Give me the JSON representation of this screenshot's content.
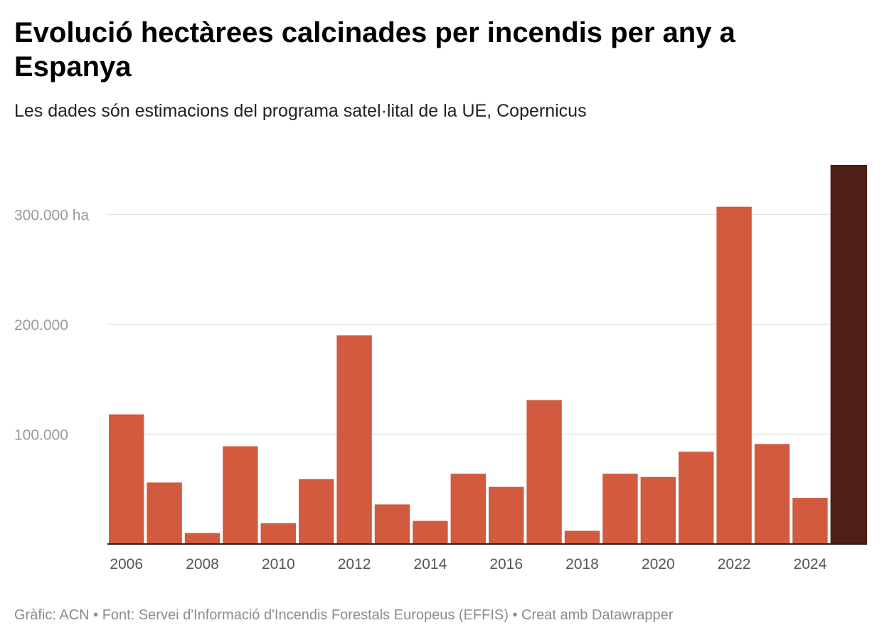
{
  "title": "Evolució hectàrees calcinades per incendis per any a Espanya",
  "subtitle": "Les dades són estimacions del programa satel·lital de la UE, Copernicus",
  "footer": {
    "credit": "Gràfic: ACN",
    "separator": " • ",
    "source": "Font: Servei d'Informació d'Incendis Forestals Europeus (EFFIS)",
    "tool": "Creat amb Datawrapper"
  },
  "chart_data": {
    "type": "bar",
    "title": "Evolució hectàrees calcinades per incendis per any a Espanya",
    "subtitle": "Les dades són estimacions del programa satel·lital de la UE, Copernicus",
    "xlabel": "",
    "ylabel": "",
    "categories": [
      "2006",
      "2007",
      "2008",
      "2009",
      "2010",
      "2011",
      "2012",
      "2013",
      "2014",
      "2015",
      "2016",
      "2017",
      "2018",
      "2019",
      "2020",
      "2021",
      "2022",
      "2023",
      "2024",
      "2025"
    ],
    "values": [
      118000,
      56000,
      10000,
      89000,
      19000,
      59000,
      190000,
      36000,
      21000,
      64000,
      52000,
      131000,
      12000,
      64000,
      61000,
      84000,
      307000,
      91000,
      42000,
      345000
    ],
    "x_tick_labels": [
      "2006",
      "2008",
      "2010",
      "2012",
      "2014",
      "2016",
      "2018",
      "2020",
      "2022",
      "2024"
    ],
    "y_ticks": [
      {
        "value": 100000,
        "label": "100.000"
      },
      {
        "value": 200000,
        "label": "200.000"
      },
      {
        "value": 300000,
        "label": "300.000 ha"
      }
    ],
    "ylim": [
      0,
      345000
    ],
    "grid": true,
    "colors": {
      "bar": "#d15a3f",
      "highlight_bar": "#4f1e14",
      "gridline": "#e3e3e3",
      "axis": "#222222",
      "tick_label": "#9a9a9a",
      "x_label": "#555555"
    },
    "highlight_last": true
  }
}
